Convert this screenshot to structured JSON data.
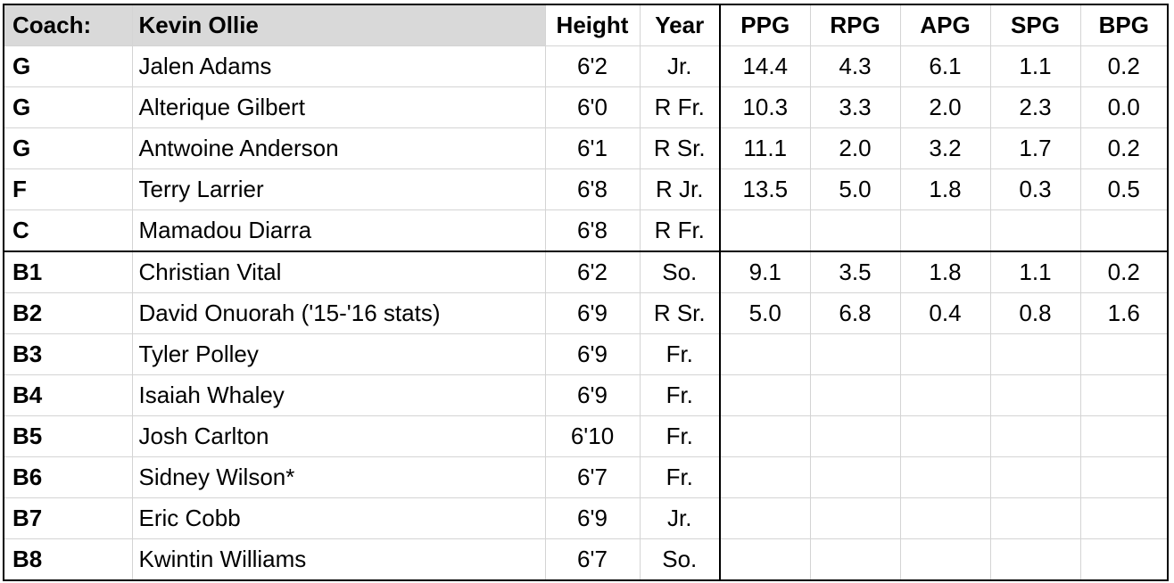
{
  "header": {
    "coach_label": "Coach:",
    "coach_name": "Kevin Ollie",
    "height": "Height",
    "year": "Year",
    "ppg": "PPG",
    "rpg": "RPG",
    "apg": "APG",
    "spg": "SPG",
    "bpg": "BPG"
  },
  "rows": [
    {
      "pos": "G",
      "name": "Jalen Adams",
      "height": "6'2",
      "year": "Jr.",
      "ppg": "14.4",
      "rpg": "4.3",
      "apg": "6.1",
      "spg": "1.1",
      "bpg": "0.2"
    },
    {
      "pos": "G",
      "name": "Alterique Gilbert",
      "height": "6'0",
      "year": "R Fr.",
      "ppg": "10.3",
      "rpg": "3.3",
      "apg": "2.0",
      "spg": "2.3",
      "bpg": "0.0"
    },
    {
      "pos": "G",
      "name": "Antwoine Anderson",
      "height": "6'1",
      "year": "R Sr.",
      "ppg": "11.1",
      "rpg": "2.0",
      "apg": "3.2",
      "spg": "1.7",
      "bpg": "0.2"
    },
    {
      "pos": "F",
      "name": "Terry Larrier",
      "height": "6'8",
      "year": "R Jr.",
      "ppg": "13.5",
      "rpg": "5.0",
      "apg": "1.8",
      "spg": "0.3",
      "bpg": "0.5"
    },
    {
      "pos": "C",
      "name": "Mamadou Diarra",
      "height": "6'8",
      "year": "R Fr.",
      "ppg": "",
      "rpg": "",
      "apg": "",
      "spg": "",
      "bpg": ""
    },
    {
      "pos": "B1",
      "name": "Christian Vital",
      "height": "6'2",
      "year": "So.",
      "ppg": "9.1",
      "rpg": "3.5",
      "apg": "1.8",
      "spg": "1.1",
      "bpg": "0.2"
    },
    {
      "pos": "B2",
      "name": "David Onuorah ('15-'16 stats)",
      "height": "6'9",
      "year": "R Sr.",
      "ppg": "5.0",
      "rpg": "6.8",
      "apg": "0.4",
      "spg": "0.8",
      "bpg": "1.6"
    },
    {
      "pos": "B3",
      "name": "Tyler Polley",
      "height": "6'9",
      "year": "Fr.",
      "ppg": "",
      "rpg": "",
      "apg": "",
      "spg": "",
      "bpg": ""
    },
    {
      "pos": "B4",
      "name": "Isaiah Whaley",
      "height": "6'9",
      "year": "Fr.",
      "ppg": "",
      "rpg": "",
      "apg": "",
      "spg": "",
      "bpg": ""
    },
    {
      "pos": "B5",
      "name": "Josh Carlton",
      "height": "6'10",
      "year": "Fr.",
      "ppg": "",
      "rpg": "",
      "apg": "",
      "spg": "",
      "bpg": ""
    },
    {
      "pos": "B6",
      "name": "Sidney Wilson*",
      "height": "6'7",
      "year": "Fr.",
      "ppg": "",
      "rpg": "",
      "apg": "",
      "spg": "",
      "bpg": ""
    },
    {
      "pos": "B7",
      "name": "Eric Cobb",
      "height": "6'9",
      "year": "Jr.",
      "ppg": "",
      "rpg": "",
      "apg": "",
      "spg": "",
      "bpg": ""
    },
    {
      "pos": "B8",
      "name": "Kwintin Williams",
      "height": "6'7",
      "year": "So.",
      "ppg": "",
      "rpg": "",
      "apg": "",
      "spg": "",
      "bpg": ""
    }
  ]
}
